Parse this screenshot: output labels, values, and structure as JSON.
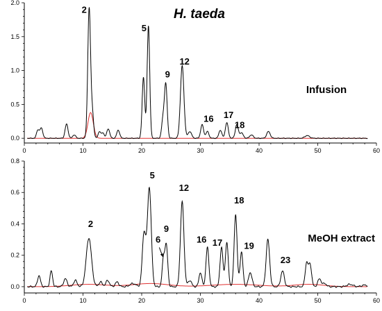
{
  "figure": {
    "title": "H. taeda"
  },
  "chart_data": [
    {
      "type": "line",
      "panel": "top",
      "label": "Infusion",
      "xlim": [
        0,
        60
      ],
      "ylim": [
        -0.07,
        2.0
      ],
      "xticks": [
        "0",
        "10",
        "20",
        "30",
        "40",
        "50",
        "60"
      ],
      "yticks": [
        "0.0",
        "0.5",
        "1.0",
        "1.5",
        "2.0"
      ],
      "ytick_values": [
        0,
        0.5,
        1.0,
        1.5,
        2.0
      ],
      "line_color": "#000000",
      "baseline_color": "#e03030",
      "peaks": [
        {
          "x": 2.3,
          "h": 0.12,
          "w": 0.22
        },
        {
          "x": 2.9,
          "h": 0.15,
          "w": 0.25
        },
        {
          "x": 7.2,
          "h": 0.21,
          "w": 0.25
        },
        {
          "x": 8.5,
          "h": 0.05,
          "w": 0.25
        },
        {
          "x": 11.05,
          "h": 1.92,
          "w": 0.24
        },
        {
          "x": 11.6,
          "h": 0.35,
          "w": 0.22
        },
        {
          "x": 12.8,
          "h": 0.1,
          "w": 0.22
        },
        {
          "x": 13.4,
          "h": 0.08,
          "w": 0.22
        },
        {
          "x": 14.3,
          "h": 0.14,
          "w": 0.25
        },
        {
          "x": 16.0,
          "h": 0.12,
          "w": 0.25
        },
        {
          "x": 20.3,
          "h": 0.9,
          "w": 0.22
        },
        {
          "x": 21.15,
          "h": 1.66,
          "w": 0.22
        },
        {
          "x": 23.6,
          "h": 0.25,
          "w": 0.22
        },
        {
          "x": 24.1,
          "h": 0.8,
          "w": 0.24
        },
        {
          "x": 26.9,
          "h": 1.07,
          "w": 0.3
        },
        {
          "x": 28.2,
          "h": 0.1,
          "w": 0.3
        },
        {
          "x": 30.3,
          "h": 0.2,
          "w": 0.25
        },
        {
          "x": 31.2,
          "h": 0.1,
          "w": 0.25
        },
        {
          "x": 33.4,
          "h": 0.12,
          "w": 0.25
        },
        {
          "x": 34.5,
          "h": 0.23,
          "w": 0.25
        },
        {
          "x": 36.2,
          "h": 0.2,
          "w": 0.25
        },
        {
          "x": 37.0,
          "h": 0.08,
          "w": 0.3
        },
        {
          "x": 38.7,
          "h": 0.05,
          "w": 0.3
        },
        {
          "x": 41.6,
          "h": 0.1,
          "w": 0.3
        },
        {
          "x": 48.2,
          "h": 0.04,
          "w": 0.4
        }
      ],
      "baseline_bumps": [
        {
          "x": 11.3,
          "h": 0.38,
          "w": 0.45
        }
      ],
      "annotations": [
        {
          "text": "2",
          "x": 10.2,
          "y": 1.85
        },
        {
          "text": "5",
          "x": 20.4,
          "y": 1.58
        },
        {
          "text": "9",
          "x": 24.4,
          "y": 0.9
        },
        {
          "text": "12",
          "x": 27.3,
          "y": 1.09
        },
        {
          "text": "16",
          "x": 31.4,
          "y": 0.24
        },
        {
          "text": "17",
          "x": 34.8,
          "y": 0.3
        },
        {
          "text": "18",
          "x": 36.7,
          "y": 0.15
        }
      ]
    },
    {
      "type": "line",
      "panel": "bottom",
      "label": "MeOH extract",
      "xlim": [
        0,
        60
      ],
      "ylim": [
        -0.04,
        0.8
      ],
      "xticks": [
        "0",
        "10",
        "20",
        "30",
        "40",
        "50",
        "60"
      ],
      "yticks": [
        "0.0",
        "0.2",
        "0.4",
        "0.6",
        "0.8"
      ],
      "ytick_values": [
        0,
        0.2,
        0.4,
        0.6,
        0.8
      ],
      "line_color": "#000000",
      "baseline_color": "#e03030",
      "peaks": [
        {
          "x": 2.5,
          "h": 0.07,
          "w": 0.25
        },
        {
          "x": 4.6,
          "h": 0.1,
          "w": 0.22
        },
        {
          "x": 7.0,
          "h": 0.05,
          "w": 0.3
        },
        {
          "x": 8.7,
          "h": 0.04,
          "w": 0.3
        },
        {
          "x": 11.0,
          "h": 0.31,
          "w": 0.45
        },
        {
          "x": 13.0,
          "h": 0.03,
          "w": 0.3
        },
        {
          "x": 14.2,
          "h": 0.04,
          "w": 0.3
        },
        {
          "x": 15.8,
          "h": 0.03,
          "w": 0.3
        },
        {
          "x": 18.5,
          "h": 0.02,
          "w": 0.5
        },
        {
          "x": 20.4,
          "h": 0.34,
          "w": 0.3
        },
        {
          "x": 21.3,
          "h": 0.63,
          "w": 0.33
        },
        {
          "x": 23.7,
          "h": 0.17,
          "w": 0.22
        },
        {
          "x": 24.2,
          "h": 0.26,
          "w": 0.24
        },
        {
          "x": 26.9,
          "h": 0.54,
          "w": 0.3
        },
        {
          "x": 28.2,
          "h": 0.04,
          "w": 0.3
        },
        {
          "x": 30.0,
          "h": 0.09,
          "w": 0.25
        },
        {
          "x": 31.2,
          "h": 0.25,
          "w": 0.25
        },
        {
          "x": 33.6,
          "h": 0.25,
          "w": 0.25
        },
        {
          "x": 34.5,
          "h": 0.28,
          "w": 0.25
        },
        {
          "x": 36.0,
          "h": 0.46,
          "w": 0.25
        },
        {
          "x": 37.0,
          "h": 0.22,
          "w": 0.25
        },
        {
          "x": 38.5,
          "h": 0.09,
          "w": 0.3
        },
        {
          "x": 41.5,
          "h": 0.3,
          "w": 0.3
        },
        {
          "x": 44.0,
          "h": 0.1,
          "w": 0.3
        },
        {
          "x": 48.1,
          "h": 0.15,
          "w": 0.25
        },
        {
          "x": 48.7,
          "h": 0.14,
          "w": 0.25
        },
        {
          "x": 50.3,
          "h": 0.05,
          "w": 0.3
        },
        {
          "x": 51.2,
          "h": 0.02,
          "w": 0.3
        },
        {
          "x": 55.5,
          "h": 0.015,
          "w": 0.5
        },
        {
          "x": 58.0,
          "h": 0.01,
          "w": 0.5
        }
      ],
      "baseline_bumps": [
        {
          "x": 11.0,
          "h": 0.015,
          "w": 3.0
        },
        {
          "x": 21.5,
          "h": 0.02,
          "w": 3.0
        },
        {
          "x": 36.0,
          "h": 0.015,
          "w": 4.0
        },
        {
          "x": 48.5,
          "h": 0.015,
          "w": 2.5
        }
      ],
      "annotations": [
        {
          "text": "2",
          "x": 11.3,
          "y": 0.38
        },
        {
          "text": "5",
          "x": 21.8,
          "y": 0.69
        },
        {
          "text": "6",
          "x": 22.8,
          "y": 0.28
        },
        {
          "text": "9",
          "x": 24.2,
          "y": 0.35
        },
        {
          "text": "12",
          "x": 27.2,
          "y": 0.61
        },
        {
          "text": "16",
          "x": 30.2,
          "y": 0.28
        },
        {
          "text": "17",
          "x": 32.9,
          "y": 0.26
        },
        {
          "text": "18",
          "x": 36.6,
          "y": 0.53
        },
        {
          "text": "19",
          "x": 38.3,
          "y": 0.24
        },
        {
          "text": "23",
          "x": 44.5,
          "y": 0.15
        }
      ],
      "arrows": [
        {
          "from": [
            23.0,
            0.25
          ],
          "to": [
            23.6,
            0.19
          ]
        }
      ]
    }
  ]
}
